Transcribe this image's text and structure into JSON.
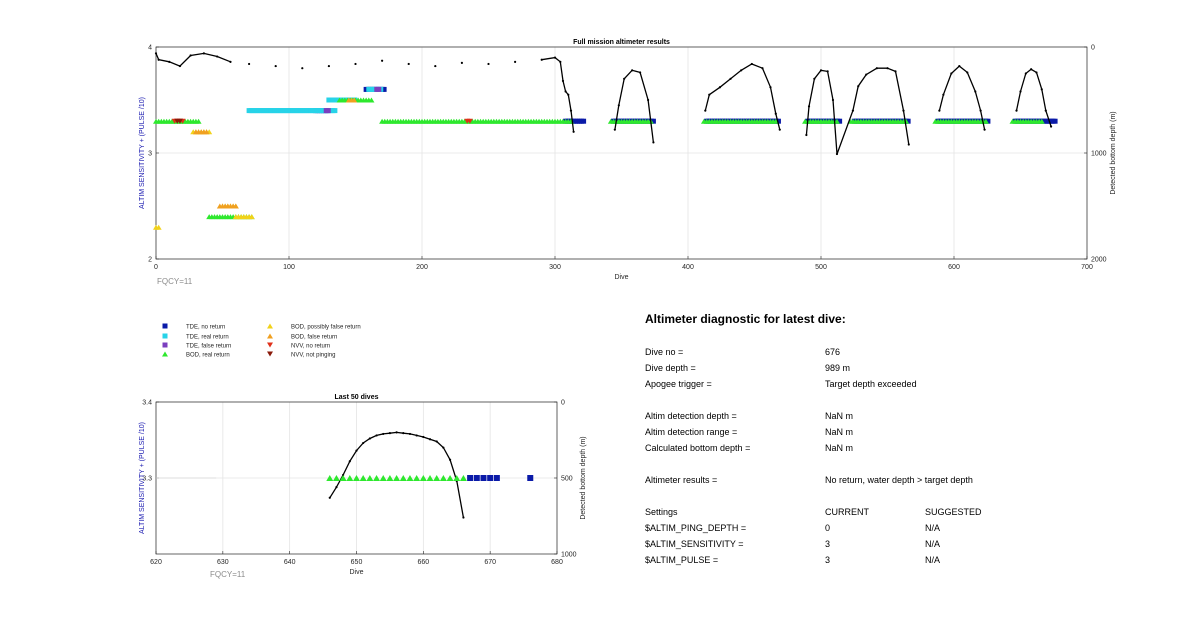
{
  "colors": {
    "tde_no_return": "#0a1aa8",
    "tde_real_return": "#27d3e8",
    "tde_false_return": "#7b3fbf",
    "bod_real_return": "#2ee82e",
    "bod_possibly_false": "#f2d21a",
    "bod_false_return": "#f0a020",
    "nvv_no_return": "#e0301a",
    "nvv_not_pinging": "#8a1a0a",
    "depth_line": "#000000",
    "ylabel_left": "#1a1ab0"
  },
  "legend": [
    {
      "key": "tde_no_return",
      "label": "TDE, no return",
      "marker": "square"
    },
    {
      "key": "tde_real_return",
      "label": "TDE, real return",
      "marker": "square"
    },
    {
      "key": "tde_false_return",
      "label": "TDE, false return",
      "marker": "square"
    },
    {
      "key": "bod_real_return",
      "label": "BOD, real return",
      "marker": "triangle-up"
    },
    {
      "key": "bod_possibly_false",
      "label": "BOD, possibly false return",
      "marker": "triangle-up"
    },
    {
      "key": "bod_false_return",
      "label": "BOD, false return",
      "marker": "triangle-up"
    },
    {
      "key": "nvv_no_return",
      "label": "NVV, no return",
      "marker": "triangle-down"
    },
    {
      "key": "nvv_not_pinging",
      "label": "NVV, not pinging",
      "marker": "triangle-down"
    }
  ],
  "chart_data": [
    {
      "type": "scatter",
      "title": "Full mission altimeter results",
      "xlabel": "Dive",
      "ylabel": "ALTIM SENSITIVITY + (PULSE /10)",
      "ylabel_right": "Detected bottom depth (m)",
      "note": "FQCY=11",
      "xlim": [
        0,
        700
      ],
      "ylim": [
        2,
        4
      ],
      "ylim_right": [
        0,
        2000
      ],
      "right_reversed": true,
      "xticks": [
        "0",
        "100",
        "200",
        "300",
        "400",
        "500",
        "600",
        "700"
      ],
      "yticks": [
        "2",
        "3",
        "4"
      ],
      "yticks_right": [
        "0",
        "1000",
        "2000"
      ],
      "grid": true,
      "series": [
        {
          "key": "tde_no_return",
          "segments": [
            [
              308,
              322,
              3.3
            ],
            [
              344,
              374,
              3.3
            ],
            [
              414,
              468,
              3.3
            ],
            [
              490,
              514,
              3.3
            ],
            [
              525,
              566,
              3.3
            ],
            [
              588,
              626,
              3.3
            ],
            [
              646,
              676,
              3.3
            ],
            [
              120,
              130,
              3.4
            ],
            [
              132,
              138,
              3.5
            ],
            [
              158,
              172,
              3.6
            ]
          ]
        },
        {
          "key": "tde_real_return",
          "segments": [
            [
              70,
              135,
              3.4
            ],
            [
              130,
              150,
              3.5
            ],
            [
              160,
              170,
              3.6
            ]
          ]
        },
        {
          "key": "tde_false_return",
          "segments": [
            [
              166,
              168,
              3.6
            ],
            [
              128,
              130,
              3.4
            ]
          ]
        },
        {
          "key": "bod_real_return",
          "segments": [
            [
              0,
              32,
              3.3
            ],
            [
              170,
              312,
              3.3
            ],
            [
              342,
              372,
              3.3
            ],
            [
              412,
              466,
              3.3
            ],
            [
              488,
              512,
              3.3
            ],
            [
              522,
              564,
              3.3
            ],
            [
              586,
              624,
              3.3
            ],
            [
              644,
              666,
              3.3
            ],
            [
              138,
              162,
              3.5
            ],
            [
              40,
              56,
              2.4
            ],
            [
              58,
              72,
              2.4
            ]
          ]
        },
        {
          "key": "bod_possibly_false",
          "segments": [
            [
              0,
              3,
              2.3
            ],
            [
              28,
              40,
              3.2
            ],
            [
              50,
              60,
              2.5
            ],
            [
              60,
              72,
              2.4
            ]
          ]
        },
        {
          "key": "bod_false_return",
          "segments": [
            [
              48,
              60,
              2.5
            ],
            [
              30,
              38,
              3.2
            ],
            [
              145,
              150,
              3.5
            ]
          ]
        },
        {
          "key": "nvv_no_return",
          "segments": [
            [
              14,
              20,
              3.3
            ],
            [
              234,
              236,
              3.3
            ]
          ]
        },
        {
          "key": "nvv_not_pinging",
          "segments": [
            [
              16,
              18,
              3.3
            ]
          ]
        }
      ],
      "depth_line": [
        [
          0,
          60
        ],
        [
          2,
          120
        ],
        [
          10,
          140
        ],
        [
          18,
          180
        ],
        [
          26,
          80
        ],
        [
          36,
          60
        ],
        [
          46,
          90
        ],
        [
          56,
          140
        ],
        [
          70,
          160
        ],
        [
          90,
          180
        ],
        [
          110,
          200
        ],
        [
          130,
          180
        ],
        [
          150,
          160
        ],
        [
          170,
          130
        ],
        [
          190,
          160
        ],
        [
          210,
          180
        ],
        [
          230,
          150
        ],
        [
          250,
          160
        ],
        [
          270,
          140
        ],
        [
          290,
          120
        ],
        [
          300,
          100
        ],
        [
          304,
          140
        ],
        [
          306,
          320
        ],
        [
          308,
          420
        ],
        [
          310,
          450
        ],
        [
          312,
          600
        ],
        [
          314,
          800
        ],
        [
          345,
          780
        ],
        [
          348,
          550
        ],
        [
          352,
          300
        ],
        [
          358,
          220
        ],
        [
          364,
          240
        ],
        [
          370,
          500
        ],
        [
          374,
          900
        ],
        [
          413,
          600
        ],
        [
          416,
          450
        ],
        [
          424,
          380
        ],
        [
          432,
          300
        ],
        [
          440,
          220
        ],
        [
          448,
          160
        ],
        [
          456,
          200
        ],
        [
          462,
          380
        ],
        [
          466,
          630
        ],
        [
          469,
          780
        ],
        [
          489,
          830
        ],
        [
          491,
          560
        ],
        [
          495,
          300
        ],
        [
          500,
          220
        ],
        [
          505,
          230
        ],
        [
          509,
          500
        ],
        [
          512,
          1010
        ],
        [
          524,
          600
        ],
        [
          528,
          370
        ],
        [
          534,
          260
        ],
        [
          542,
          200
        ],
        [
          550,
          200
        ],
        [
          556,
          230
        ],
        [
          562,
          600
        ],
        [
          566,
          920
        ],
        [
          589,
          600
        ],
        [
          592,
          450
        ],
        [
          598,
          250
        ],
        [
          604,
          180
        ],
        [
          610,
          240
        ],
        [
          616,
          420
        ],
        [
          620,
          600
        ],
        [
          623,
          780
        ],
        [
          647,
          600
        ],
        [
          650,
          420
        ],
        [
          654,
          250
        ],
        [
          658,
          210
        ],
        [
          662,
          240
        ],
        [
          666,
          400
        ],
        [
          669,
          600
        ],
        [
          673,
          750
        ]
      ]
    },
    {
      "type": "scatter",
      "title": "Last 50 dives",
      "xlabel": "Dive",
      "ylabel": "ALTIM SENSITIVITY + (PULSE /10)",
      "ylabel_right": "Detected bottom depth (m)",
      "note": "FQCY=11",
      "xlim": [
        620,
        680
      ],
      "ylim": [
        3.2,
        3.4
      ],
      "ylim_right": [
        0,
        1000
      ],
      "right_reversed": true,
      "xticks": [
        "620",
        "630",
        "640",
        "650",
        "660",
        "670",
        "680"
      ],
      "yticks": [
        "3.4",
        "3.3"
      ],
      "yticks_right": [
        "0",
        "500",
        "1000"
      ],
      "grid": true,
      "points": [
        {
          "key": "bod_real_return",
          "x": [
            646,
            647,
            648,
            649,
            650,
            651,
            652,
            653,
            654,
            655,
            656,
            657,
            658,
            659,
            660,
            661,
            662,
            663,
            664,
            665,
            666
          ],
          "y": 3.3
        },
        {
          "key": "tde_no_return",
          "x": [
            667,
            668,
            669,
            670,
            671,
            676
          ],
          "y": 3.3
        }
      ],
      "depth_line": [
        [
          646,
          630
        ],
        [
          647,
          560
        ],
        [
          648,
          480
        ],
        [
          649,
          390
        ],
        [
          650,
          320
        ],
        [
          651,
          270
        ],
        [
          652,
          240
        ],
        [
          653,
          220
        ],
        [
          654,
          210
        ],
        [
          655,
          205
        ],
        [
          656,
          200
        ],
        [
          657,
          205
        ],
        [
          658,
          210
        ],
        [
          659,
          220
        ],
        [
          660,
          230
        ],
        [
          661,
          245
        ],
        [
          662,
          260
        ],
        [
          663,
          300
        ],
        [
          664,
          380
        ],
        [
          665,
          520
        ],
        [
          666,
          760
        ]
      ]
    }
  ],
  "diagnostic": {
    "title": "Altimeter diagnostic for latest dive:",
    "rows": [
      {
        "label": "Dive no =",
        "value": "676"
      },
      {
        "label": "Dive depth =",
        "value": "989 m"
      },
      {
        "label": "Apogee trigger =",
        "value": "Target depth exceeded"
      },
      {
        "label": "",
        "value": ""
      },
      {
        "label": "Altim detection depth =",
        "value": "NaN m"
      },
      {
        "label": "Altim detection range =",
        "value": "NaN m"
      },
      {
        "label": "Calculated bottom depth =",
        "value": "NaN m"
      },
      {
        "label": "",
        "value": ""
      },
      {
        "label": "Altimeter results =",
        "value": "No return, water depth > target depth"
      },
      {
        "label": "",
        "value": ""
      },
      {
        "label": "Settings",
        "value": "CURRENT",
        "suggested": "SUGGESTED"
      },
      {
        "label": "$ALTIM_PING_DEPTH =",
        "value": "0",
        "suggested": "N/A"
      },
      {
        "label": "$ALTIM_SENSITIVITY =",
        "value": "3",
        "suggested": "N/A"
      },
      {
        "label": "$ALTIM_PULSE =",
        "value": "3",
        "suggested": "N/A"
      }
    ]
  }
}
